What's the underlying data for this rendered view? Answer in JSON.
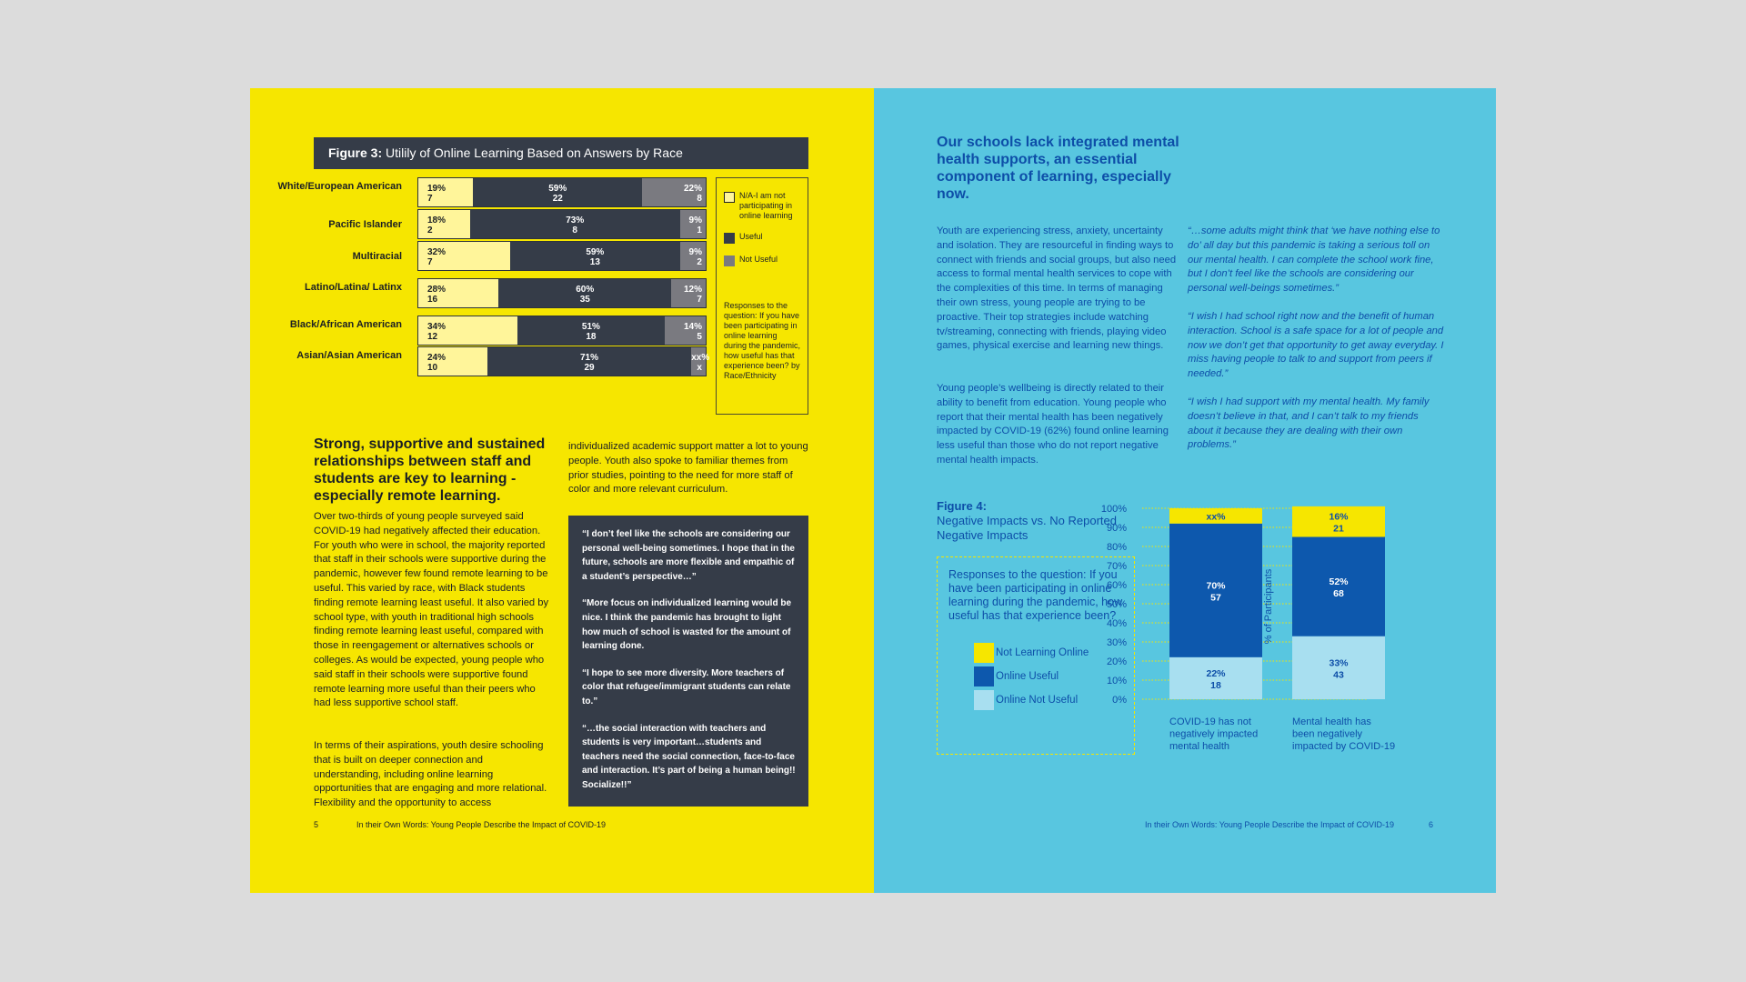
{
  "left_page": {
    "figure3": {
      "title_prefix": "Figure 3:",
      "title": "Utilily of Online Learning Based on Answers by Race",
      "rows": [
        {
          "label": "White/European American",
          "not_useful": {
            "pct": "19%",
            "n": "7"
          },
          "useful": {
            "pct": "59%",
            "n": "22"
          },
          "na": {
            "pct": "22%",
            "n": "8"
          }
        },
        {
          "label": "Pacific Islander",
          "not_useful": {
            "pct": "18%",
            "n": "2"
          },
          "useful": {
            "pct": "73%",
            "n": "8"
          },
          "na": {
            "pct": "9%",
            "n": "1"
          }
        },
        {
          "label": "Multiracial",
          "not_useful": {
            "pct": "32%",
            "n": "7"
          },
          "useful": {
            "pct": "59%",
            "n": "13"
          },
          "na": {
            "pct": "9%",
            "n": "2"
          }
        },
        {
          "label": "Latino/Latina/ Latinx",
          "not_useful": {
            "pct": "28%",
            "n": "16"
          },
          "useful": {
            "pct": "60%",
            "n": "35"
          },
          "na": {
            "pct": "12%",
            "n": "7"
          }
        },
        {
          "label": "Black/African American",
          "not_useful": {
            "pct": "34%",
            "n": "12"
          },
          "useful": {
            "pct": "51%",
            "n": "18"
          },
          "na": {
            "pct": "14%",
            "n": "5"
          }
        },
        {
          "label": "Asian/Asian American",
          "not_useful": {
            "pct": "24%",
            "n": "10"
          },
          "useful": {
            "pct": "71%",
            "n": "29"
          },
          "na": {
            "pct": "xx%",
            "n": "x"
          }
        }
      ],
      "legend": [
        {
          "label": "N/A-I am not participating in online learning",
          "color": "#f6e600"
        },
        {
          "label": "Useful",
          "color": "#353c48"
        },
        {
          "label": "Not Useful",
          "color": "#7a7a80"
        }
      ],
      "legend_note": "Responses to the question: If you have been participating in online learning during the pandemic, how useful has that experience been? by Race/Ethnicity"
    },
    "heading": "Strong, supportive and sustained relationships between staff and students are key to learning - especially remote learning.",
    "para1": "Over two-thirds of young people surveyed said COVID-19 had negatively affected their education. For youth who were in school, the majority reported that staff in their schools were supportive during the pandemic, however few found remote learning to be useful. This varied by race, with Black students finding remote learning least useful. It also varied by school type, with youth in traditional high schools finding remote learning least useful, compared with those in reengagement or alternatives schools or colleges. As would be expected, young people who said staff in their schools were supportive found remote learning more useful than their peers who had less supportive school staff.",
    "para2": "In terms of their aspirations, youth desire schooling that is built on deeper connection and understanding, including online learning opportunities that are engaging and more relational. Flexibility and the opportunity to access",
    "para3": "individualized academic support matter a lot to young people. Youth also spoke to familiar themes from prior studies, pointing to the need for more staff of color and more relevant curriculum.",
    "quotes": [
      "“I don’t feel like the schools are considering our personal well-being sometimes. I hope that in the future, schools are more flexible and empathic of a student’s perspective…”",
      "“More focus on individualized learning would be nice. I think the pandemic has brought to light how much of school is wasted for the amount of learning done.",
      "“I hope to see more diversity. More teachers of color that refugee/immigrant students can relate to.”",
      "“…the social interaction with teachers and students is very important…students and teachers need the social connection, face-to-face and interaction. It’s part of being a human being!! Socialize!!”"
    ],
    "footer_page": "5",
    "footer_title": "In their Own Words: Young People Describe the Impact of COVID-19"
  },
  "right_page": {
    "heading": "Our schools lack integrated mental health supports, an essential component of learning, especially now.",
    "para1": "Youth are experiencing stress, anxiety, uncertainty and isolation. They are resourceful in finding ways to connect with friends and social groups, but also need access to formal mental health services to cope with the complexities of this time. In terms of managing their own stress, young people are trying to be proactive. Their top strategies include watching tv/streaming, connecting with friends, playing video games, physical exercise and learning new things.",
    "para2": "Young people’s wellbeing is directly related to their ability to benefit from education. Young people who report that their mental health has been negatively impacted by COVID-19 (62%) found online learning less useful than those who do not report negative mental health impacts.",
    "quotes": [
      "“…some adults might think that ‘we have nothing else to do’ all day but this pandemic is taking a serious toll on our mental health. I can complete the school work fine, but I don’t feel like the schools are considering our personal well-beings sometimes.”",
      "“I wish I had school right now and the benefit of human interaction. School is a safe space for a lot of people and now we don’t get that opportunity to get away everyday. I miss having people to talk to and support from peers if needed.”",
      "“I wish I had support with my mental health. My family doesn’t believe in that, and I can’t talk to my friends about it because they are dealing with their own problems.”"
    ],
    "figure4": {
      "title_prefix": "Figure 4:",
      "title": "Negative Impacts vs. No Reported Negative Impacts",
      "question": "Responses to the question: If you have been participating in online learning during the pandemic, how useful has that experience been?",
      "legend": [
        {
          "label": "Not Learning Online",
          "color": "#f6e600"
        },
        {
          "label": "Online Useful",
          "color": "#0d58ad"
        },
        {
          "label": "Online Not Useful",
          "color": "#a8dff0"
        }
      ]
    },
    "footer_title": "In their Own Words: Young People Describe the Impact of COVID-19",
    "footer_page": "6"
  },
  "chart_data": {
    "type": "bar",
    "stacked": true,
    "title": "Negative Impacts vs. No Reported Negative Impacts",
    "ylabel": "% of Participants",
    "ylim": [
      0,
      100
    ],
    "yticks": [
      "0%",
      "10%",
      "20%",
      "30%",
      "40%",
      "50%",
      "60%",
      "70%",
      "80%",
      "90%",
      "100%"
    ],
    "categories": [
      "COVID-19 has not negatively impacted mental health",
      "Mental health has been negatively impacted by COVID-19"
    ],
    "series": [
      {
        "name": "Online Not Useful",
        "values": [
          22,
          33
        ],
        "labels": [
          "22%",
          "33%"
        ],
        "counts": [
          "18",
          "43"
        ],
        "color": "#a8dff0"
      },
      {
        "name": "Online Useful",
        "values": [
          70,
          52
        ],
        "labels": [
          "70%",
          "52%"
        ],
        "counts": [
          "57",
          "68"
        ],
        "color": "#0d58ad"
      },
      {
        "name": "Not Learning Online",
        "values": [
          8,
          16
        ],
        "labels": [
          "xx%",
          "16%"
        ],
        "counts": [
          "",
          "21"
        ],
        "color": "#f6e600"
      }
    ]
  }
}
